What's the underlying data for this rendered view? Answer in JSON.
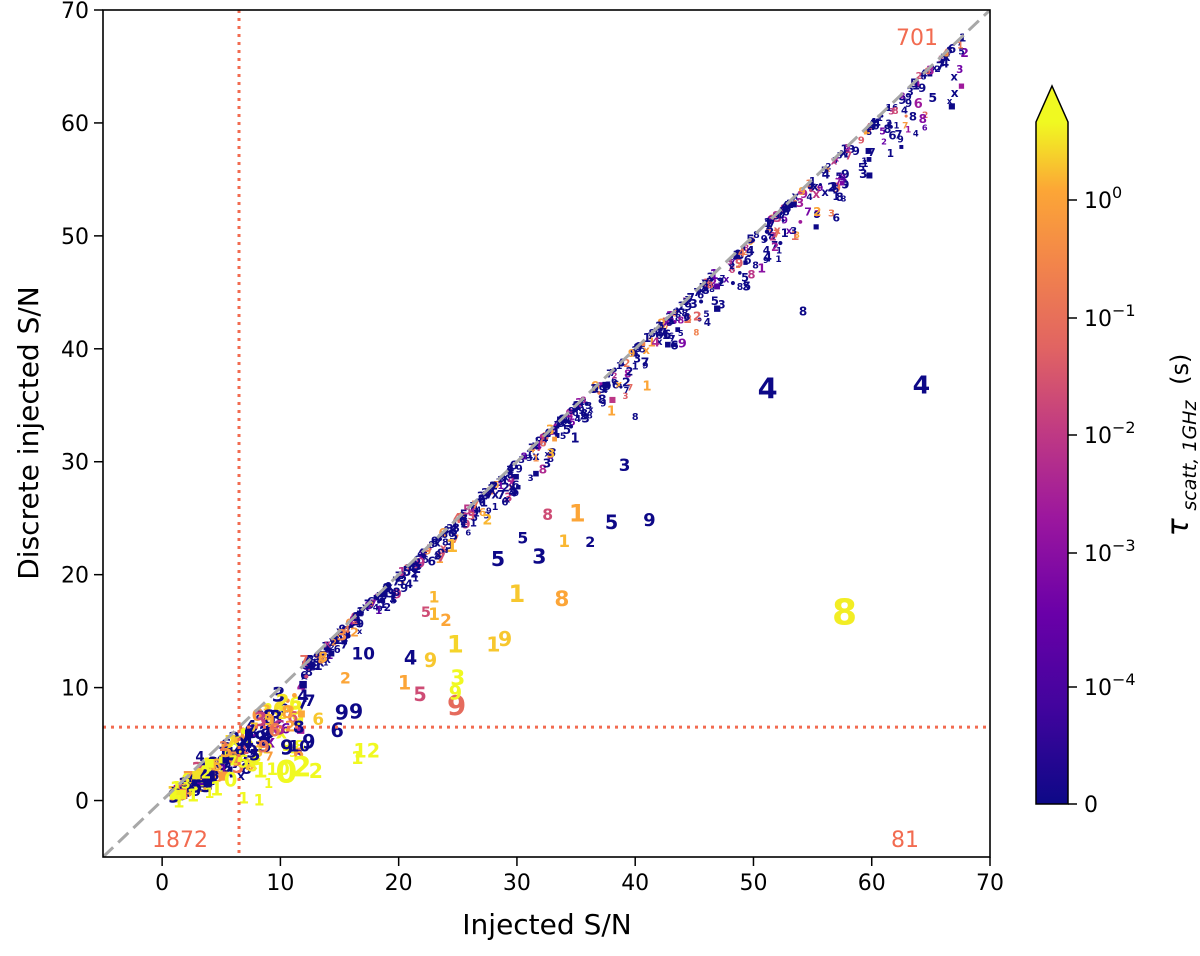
{
  "chart_data": {
    "type": "scatter",
    "title": "",
    "xlabel": "Injected S/N",
    "ylabel": "Discrete injected S/N",
    "xlim": [
      -5,
      70
    ],
    "ylim": [
      -5,
      70
    ],
    "xticks": [
      0,
      10,
      20,
      30,
      40,
      50,
      60,
      70
    ],
    "yticks": [
      0,
      10,
      20,
      30,
      40,
      50,
      60,
      70
    ],
    "grid": false,
    "reference_line": {
      "label": "y = x",
      "style": "dashed",
      "color": "#a8a8a8"
    },
    "threshold": {
      "value": 6.5,
      "style": "dotted",
      "color": "#f26b50"
    },
    "quadrant_counts": [
      {
        "text": "701",
        "position": "top-right"
      },
      {
        "text": "1872",
        "position": "bottom-left"
      },
      {
        "text": "81",
        "position": "bottom-right"
      }
    ],
    "colorbar": {
      "label_main": "τ",
      "label_sub": "scatt, 1GHz",
      "label_unit": "(s)",
      "scale": "log",
      "extend": "max",
      "ticks": [
        {
          "base": "0",
          "exp": ""
        },
        {
          "base": "10",
          "exp": "−4"
        },
        {
          "base": "10",
          "exp": "−3"
        },
        {
          "base": "10",
          "exp": "−2"
        },
        {
          "base": "10",
          "exp": "−1"
        },
        {
          "base": "10",
          "exp": "0"
        }
      ]
    },
    "points": [
      {
        "x": 51.2,
        "y": 36.5,
        "label": "4",
        "tau": 0,
        "size": 2.4
      },
      {
        "x": 64.2,
        "y": 36.8,
        "label": "4",
        "tau": 0,
        "size": 2.1
      },
      {
        "x": 57.7,
        "y": 16.6,
        "label": "8",
        "tau": 0.85,
        "size": 3.0
      },
      {
        "x": 41.2,
        "y": 24.8,
        "label": "9",
        "tau": 0,
        "size": 1.5
      },
      {
        "x": 38.0,
        "y": 24.6,
        "label": "5",
        "tau": 0,
        "size": 1.6
      },
      {
        "x": 39.1,
        "y": 29.7,
        "label": "3",
        "tau": 0,
        "size": 1.4
      },
      {
        "x": 36.2,
        "y": 22.8,
        "label": "2",
        "tau": 0,
        "size": 1.2
      },
      {
        "x": 31.9,
        "y": 21.6,
        "label": "3",
        "tau": 0,
        "size": 1.7
      },
      {
        "x": 30.5,
        "y": 23.2,
        "label": "5",
        "tau": 0,
        "size": 1.3
      },
      {
        "x": 28.4,
        "y": 21.4,
        "label": "5",
        "tau": 0,
        "size": 1.7
      },
      {
        "x": 35.1,
        "y": 25.4,
        "label": "1",
        "tau": 0.3,
        "size": 2.0
      },
      {
        "x": 32.6,
        "y": 25.3,
        "label": "8",
        "tau": 0.01,
        "size": 1.3
      },
      {
        "x": 34.0,
        "y": 23.0,
        "label": "1",
        "tau": 0.4,
        "size": 1.4
      },
      {
        "x": 33.8,
        "y": 17.8,
        "label": "8",
        "tau": 0.3,
        "size": 1.8
      },
      {
        "x": 30.0,
        "y": 18.3,
        "label": "1",
        "tau": 0.5,
        "size": 2.0
      },
      {
        "x": 28.0,
        "y": 13.8,
        "label": "1",
        "tau": 0.5,
        "size": 1.7
      },
      {
        "x": 29.0,
        "y": 14.3,
        "label": "9",
        "tau": 0.5,
        "size": 1.7
      },
      {
        "x": 24.8,
        "y": 13.8,
        "label": "1",
        "tau": 0.6,
        "size": 2.0
      },
      {
        "x": 22.7,
        "y": 12.4,
        "label": "9",
        "tau": 0.5,
        "size": 1.6
      },
      {
        "x": 21.0,
        "y": 12.6,
        "label": "4",
        "tau": 0,
        "size": 1.6
      },
      {
        "x": 20.5,
        "y": 10.4,
        "label": "1",
        "tau": 0.3,
        "size": 1.6
      },
      {
        "x": 21.8,
        "y": 9.4,
        "label": "5",
        "tau": 0.01,
        "size": 1.6
      },
      {
        "x": 25.0,
        "y": 10.8,
        "label": "3",
        "tau": 1.0,
        "size": 1.8
      },
      {
        "x": 24.9,
        "y": 8.4,
        "label": "9",
        "tau": 0.03,
        "size": 2.3
      },
      {
        "x": 24.8,
        "y": 9.5,
        "label": "9",
        "tau": 1.5,
        "size": 1.6
      },
      {
        "x": 24.0,
        "y": 16.0,
        "label": "2",
        "tau": 0.3,
        "size": 1.4
      },
      {
        "x": 23.0,
        "y": 16.5,
        "label": "1",
        "tau": 0.4,
        "size": 1.4
      },
      {
        "x": 23.0,
        "y": 18.0,
        "label": "1",
        "tau": 0.4,
        "size": 1.3
      },
      {
        "x": 24.5,
        "y": 22.5,
        "label": "1",
        "tau": 0.4,
        "size": 1.5
      },
      {
        "x": 27.5,
        "y": 24.8,
        "label": "2",
        "tau": 0.4,
        "size": 1.2
      },
      {
        "x": 22.3,
        "y": 16.6,
        "label": "5",
        "tau": 0.01,
        "size": 1.2
      },
      {
        "x": 17.0,
        "y": 13.0,
        "label": "10",
        "tau": 0,
        "size": 1.4
      },
      {
        "x": 15.2,
        "y": 14.6,
        "label": "3",
        "tau": 0.1,
        "size": 1.3
      },
      {
        "x": 15.2,
        "y": 7.8,
        "label": "9",
        "tau": 0,
        "size": 1.7
      },
      {
        "x": 16.4,
        "y": 7.9,
        "label": "9",
        "tau": 0,
        "size": 1.7
      },
      {
        "x": 14.8,
        "y": 6.2,
        "label": "6",
        "tau": 0,
        "size": 1.6
      },
      {
        "x": 12.5,
        "y": 8.8,
        "label": "7",
        "tau": 0,
        "size": 1.3
      },
      {
        "x": 13.2,
        "y": 7.2,
        "label": "6",
        "tau": 0.5,
        "size": 1.4
      },
      {
        "x": 15.5,
        "y": 10.8,
        "label": "2",
        "tau": 0.3,
        "size": 1.3
      },
      {
        "x": 17.3,
        "y": 4.4,
        "label": "12",
        "tau": 3.0,
        "size": 1.6
      },
      {
        "x": 16.5,
        "y": 3.7,
        "label": "1",
        "tau": 3.0,
        "size": 1.5
      },
      {
        "x": 12.4,
        "y": 5.2,
        "label": "9",
        "tau": 0,
        "size": 1.6
      },
      {
        "x": 11.6,
        "y": 4.8,
        "label": "10",
        "tau": 0,
        "size": 1.3
      },
      {
        "x": 11.8,
        "y": 3.0,
        "label": "2",
        "tau": 2.5,
        "size": 2.3
      },
      {
        "x": 10.5,
        "y": 2.5,
        "label": "0",
        "tau": 3.0,
        "size": 2.6
      },
      {
        "x": 13.0,
        "y": 2.6,
        "label": "2",
        "tau": 2.5,
        "size": 1.7
      },
      {
        "x": 9.8,
        "y": 2.8,
        "label": "10",
        "tau": 1.0,
        "size": 1.4
      },
      {
        "x": 8.6,
        "y": 4.8,
        "label": "9",
        "tau": 0.05,
        "size": 1.4
      },
      {
        "x": 7.6,
        "y": 4.3,
        "label": "9",
        "tau": 0,
        "size": 1.5
      },
      {
        "x": 8.3,
        "y": 2.6,
        "label": "1",
        "tau": 3.0,
        "size": 1.8
      },
      {
        "x": 9.5,
        "y": 6.2,
        "label": "6",
        "tau": 0.05,
        "size": 1.5
      },
      {
        "x": 10.6,
        "y": 7.8,
        "label": "8",
        "tau": 0.3,
        "size": 1.5
      },
      {
        "x": 13.6,
        "y": 12.6,
        "label": "8",
        "tau": 0.3,
        "size": 1.2
      },
      {
        "x": 12.0,
        "y": 12.3,
        "label": "7",
        "tau": 0.03,
        "size": 1.1
      },
      {
        "x": 3.2,
        "y": 3.8,
        "label": "4",
        "tau": 0,
        "size": 1.1
      },
      {
        "x": 6.8,
        "y": 3.4,
        "label": "6",
        "tau": 2.0,
        "size": 1.5
      },
      {
        "x": 5.8,
        "y": 1.8,
        "label": "0",
        "tau": 3.0,
        "size": 1.6
      },
      {
        "x": 4.6,
        "y": 1.0,
        "label": "1",
        "tau": 3.0,
        "size": 1.6
      },
      {
        "x": 2.6,
        "y": 0.4,
        "label": "1",
        "tau": 3.0,
        "size": 1.5
      },
      {
        "x": 1.4,
        "y": -0.1,
        "label": "1",
        "tau": 3.0,
        "size": 1.4
      },
      {
        "x": 3.7,
        "y": 2.4,
        "label": "2",
        "tau": 1.5,
        "size": 1.3
      },
      {
        "x": 6.9,
        "y": 0.2,
        "label": "1",
        "tau": 3.0,
        "size": 1.3
      },
      {
        "x": 8.2,
        "y": 0.0,
        "label": "1",
        "tau": 3.0,
        "size": 1.3
      },
      {
        "x": 2.0,
        "y": 1.4,
        "label": "3",
        "tau": 1.2,
        "size": 1.2
      },
      {
        "x": 5.2,
        "y": 4.7,
        "label": "2",
        "tau": 0.05,
        "size": 1.1
      },
      {
        "x": 4.0,
        "y": 0.6,
        "label": "1",
        "tau": 2.5,
        "size": 1.2
      },
      {
        "x": 9.0,
        "y": 1.4,
        "label": "1",
        "tau": 3.0,
        "size": 1.1
      },
      {
        "x": 54.2,
        "y": 43.3,
        "label": "8",
        "tau": 0,
        "size": 1.0
      },
      {
        "x": 57.0,
        "y": 51.6,
        "label": "6",
        "tau": 0,
        "size": 0.9
      },
      {
        "x": 55.4,
        "y": 52.1,
        "label": "2",
        "tau": 0.3,
        "size": 1.0
      },
      {
        "x": 41.0,
        "y": 36.6,
        "label": "1",
        "tau": 0.3,
        "size": 1.1
      },
      {
        "x": 38.0,
        "y": 34.4,
        "label": "1",
        "tau": 0.3,
        "size": 1.1
      },
      {
        "x": 40.0,
        "y": 33.9,
        "label": "8",
        "tau": 0,
        "size": 0.8
      },
      {
        "x": 49.0,
        "y": 48.5,
        "label": "4",
        "tau": 0.05,
        "size": 0.9
      },
      {
        "x": 62.0,
        "y": 61.0,
        "label": "8",
        "tau": 0.01,
        "size": 0.8
      },
      {
        "x": 64.0,
        "y": 64.1,
        "label": "2",
        "tau": 0.01,
        "size": 0.8
      },
      {
        "x": 67.5,
        "y": 66.8,
        "label": "1",
        "tau": 0.05,
        "size": 0.8
      }
    ],
    "cloud_note": "dense cloud of small markers hugging the y = x line; rendered from a seeded generator"
  }
}
